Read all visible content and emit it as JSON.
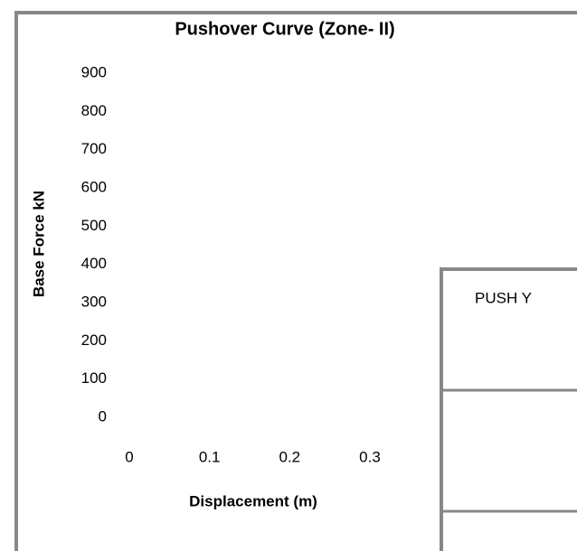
{
  "chart_data": {
    "type": "line",
    "title": "Pushover Curve (Zone- II)",
    "xlabel": "Displacement (m)",
    "ylabel": "Base Force kN",
    "series": [
      {
        "name": "PUSH Y",
        "x": [],
        "values": []
      }
    ],
    "xlim": [
      0,
      0.3
    ],
    "xticks": [
      0,
      0.1,
      0.2,
      0.3
    ],
    "ylim": [
      0,
      900
    ],
    "yticks": [
      0,
      100,
      200,
      300,
      400,
      500,
      600,
      700,
      800,
      900
    ],
    "grid": false
  }
}
